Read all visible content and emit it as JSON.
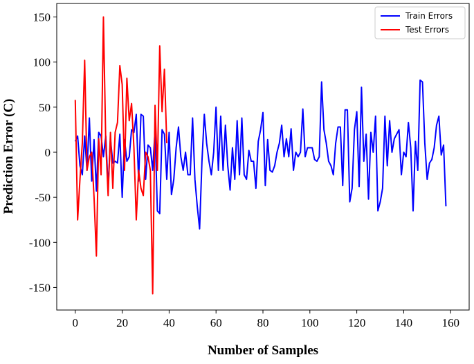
{
  "chart_data": {
    "type": "line",
    "xlabel": "Number of Samples",
    "ylabel": "Prediction Error (C)",
    "xlim": [
      -7.9,
      167.9
    ],
    "ylim": [
      -175,
      165
    ],
    "xticks": [
      0,
      20,
      40,
      60,
      80,
      100,
      120,
      140,
      160
    ],
    "yticks": [
      150,
      100,
      50,
      0,
      -50,
      -100,
      -150
    ],
    "legend": "upper right",
    "series": [
      {
        "name": "Train Errors",
        "color": "#0000ff",
        "x": [
          0,
          1,
          2,
          3,
          4,
          5,
          6,
          7,
          8,
          9,
          10,
          11,
          12,
          13,
          14,
          15,
          16,
          17,
          18,
          19,
          20,
          21,
          22,
          23,
          24,
          25,
          26,
          27,
          28,
          29,
          30,
          31,
          32,
          33,
          34,
          35,
          36,
          37,
          38,
          39,
          40,
          41,
          42,
          43,
          44,
          45,
          46,
          47,
          48,
          49,
          50,
          51,
          52,
          53,
          54,
          55,
          56,
          57,
          58,
          59,
          60,
          61,
          62,
          63,
          64,
          65,
          66,
          67,
          68,
          69,
          70,
          71,
          72,
          73,
          74,
          75,
          76,
          77,
          78,
          79,
          80,
          81,
          82,
          83,
          84,
          85,
          86,
          87,
          88,
          89,
          90,
          91,
          92,
          93,
          94,
          95,
          96,
          97,
          98,
          99,
          100,
          101,
          102,
          103,
          104,
          105,
          106,
          107,
          108,
          109,
          110,
          111,
          112,
          113,
          114,
          115,
          116,
          117,
          118,
          119,
          120,
          121,
          122,
          123,
          124,
          125,
          126,
          127,
          128,
          129,
          130,
          131,
          132,
          133,
          134,
          135,
          136,
          137,
          138,
          139,
          140,
          141,
          142,
          143,
          144,
          145,
          146,
          147,
          148,
          149,
          150,
          151,
          152,
          153,
          154,
          155,
          156,
          157,
          158
        ],
        "values": [
          12,
          18,
          -15,
          -25,
          18,
          -20,
          38,
          -32,
          14,
          -43,
          22,
          18,
          -5,
          18,
          -40,
          15,
          -12,
          -10,
          -12,
          20,
          -50,
          14,
          -10,
          -5,
          25,
          22,
          42,
          -32,
          42,
          40,
          -30,
          8,
          5,
          -20,
          25,
          -65,
          -68,
          25,
          20,
          -30,
          22,
          -47,
          -30,
          5,
          28,
          -5,
          -20,
          0,
          -25,
          -25,
          38,
          -30,
          -60,
          -85,
          -10,
          42,
          10,
          -10,
          -25,
          0,
          50,
          -20,
          40,
          -20,
          30,
          -15,
          -42,
          5,
          -30,
          35,
          -25,
          38,
          -25,
          -30,
          2,
          -10,
          -10,
          -40,
          12,
          25,
          44,
          -37,
          14,
          -20,
          -22,
          -15,
          0,
          10,
          30,
          -5,
          15,
          -5,
          26,
          -20,
          0,
          -5,
          0,
          48,
          -5,
          5,
          5,
          5,
          -8,
          -10,
          -5,
          78,
          25,
          10,
          -10,
          -15,
          -25,
          10,
          28,
          28,
          -37,
          47,
          47,
          -55,
          -40,
          25,
          45,
          -38,
          72,
          -10,
          20,
          -52,
          22,
          0,
          40,
          -65,
          -55,
          -40,
          40,
          -15,
          35,
          0,
          15,
          20,
          25,
          -25,
          0,
          -5,
          33,
          5,
          -65,
          12,
          -20,
          80,
          78,
          10,
          -30,
          -12,
          -8,
          5,
          30,
          40,
          -3,
          8,
          -60
        ]
      },
      {
        "name": "Test Errors",
        "color": "#ff0000",
        "x": [
          0,
          1,
          2,
          3,
          4,
          5,
          6,
          7,
          8,
          9,
          10,
          11,
          12,
          13,
          14,
          15,
          16,
          17,
          18,
          19,
          20,
          21,
          22,
          23,
          24,
          25,
          26,
          27,
          28,
          29,
          30,
          31,
          32,
          33,
          34,
          35,
          36,
          37,
          38,
          39
        ],
        "values": [
          58,
          -75,
          -30,
          10,
          102,
          -20,
          -5,
          0,
          -50,
          -115,
          15,
          -25,
          150,
          10,
          -48,
          22,
          -40,
          22,
          33,
          96,
          75,
          -20,
          82,
          35,
          54,
          5,
          -75,
          -20,
          -40,
          -48,
          0,
          -5,
          -20,
          -157,
          52,
          -20,
          118,
          45,
          92,
          10
        ]
      }
    ]
  }
}
